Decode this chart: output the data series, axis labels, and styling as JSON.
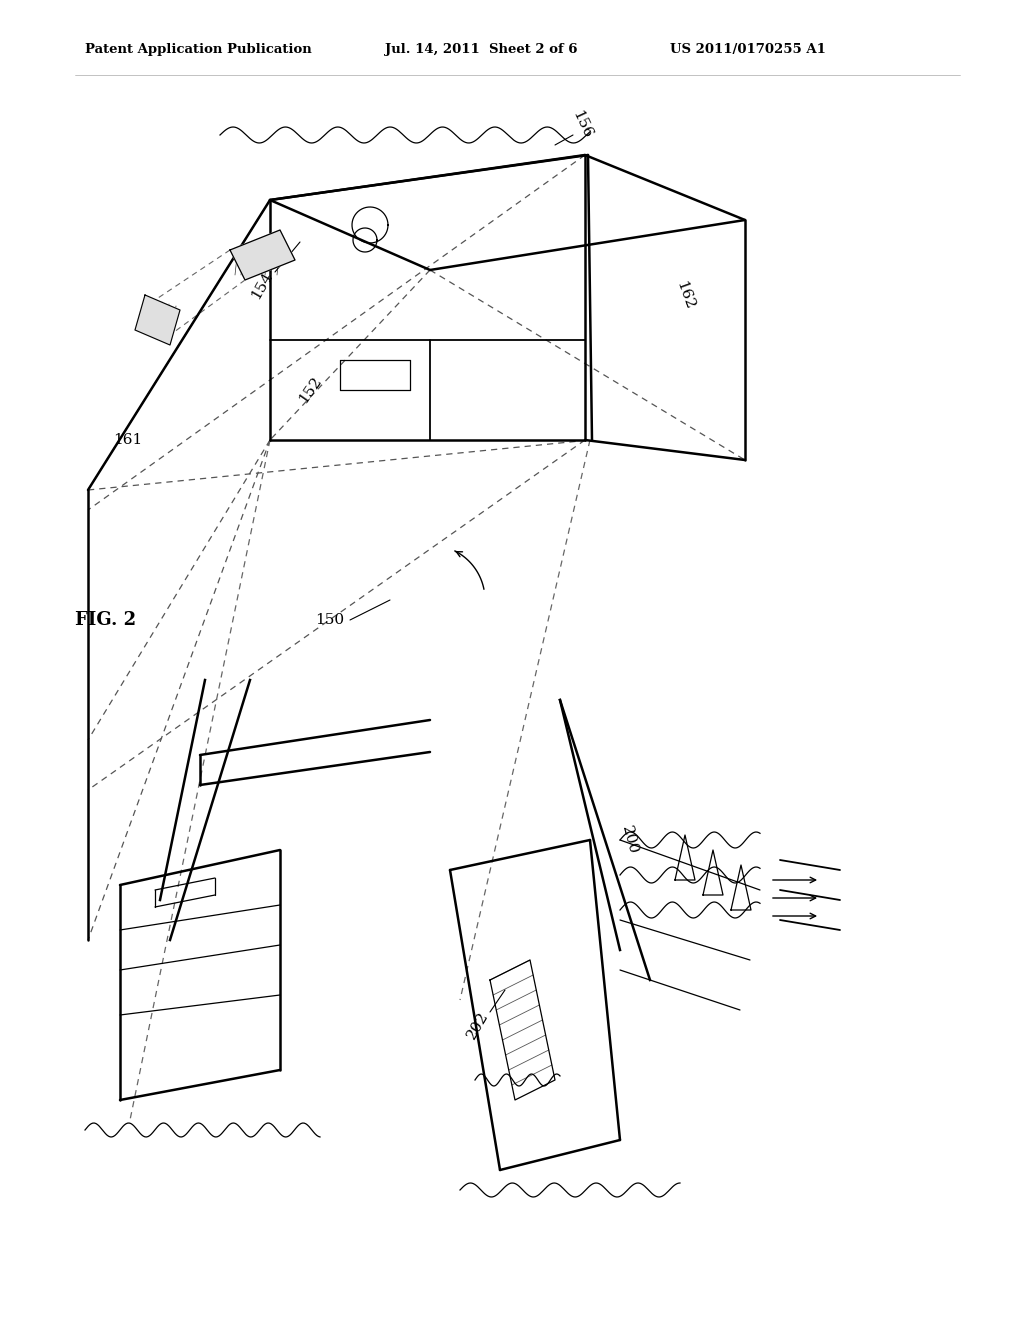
{
  "background_color": "#ffffff",
  "header_left": "Patent Application Publication",
  "header_center": "Jul. 14, 2011  Sheet 2 of 6",
  "header_right": "US 2011/0170255 A1",
  "figure_label": "FIG. 2",
  "text_color": "#000000",
  "line_color": "#000000"
}
